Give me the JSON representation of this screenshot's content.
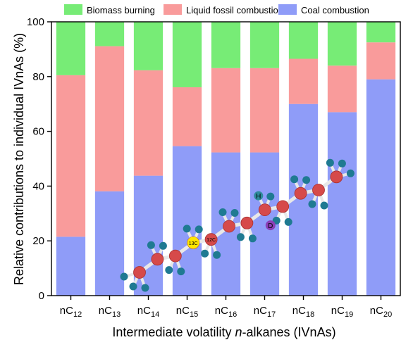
{
  "chart_data": {
    "type": "bar",
    "stacked": true,
    "ylabel": "Relative contributions to individual IVnAs (%)",
    "xlabel": {
      "prefix": "Intermediate volatility ",
      "italic": "n",
      "suffix": "-alkanes (IVnAs)"
    },
    "ylim": [
      0,
      100
    ],
    "yticks": [
      0,
      20,
      40,
      60,
      80,
      100
    ],
    "categories": [
      {
        "base": "nC",
        "sub": "12"
      },
      {
        "base": "nC",
        "sub": "13"
      },
      {
        "base": "nC",
        "sub": "14"
      },
      {
        "base": "nC",
        "sub": "15"
      },
      {
        "base": "nC",
        "sub": "16"
      },
      {
        "base": "nC",
        "sub": "17"
      },
      {
        "base": "nC",
        "sub": "18"
      },
      {
        "base": "nC",
        "sub": "19"
      },
      {
        "base": "nC",
        "sub": "20"
      }
    ],
    "series": [
      {
        "name": "Coal combustion",
        "color": "#8f9cf8",
        "values": [
          21.5,
          38.1,
          43.8,
          54.6,
          52.3,
          52.3,
          70.0,
          67.0,
          79.0
        ]
      },
      {
        "name": "Liquid fossil combustion",
        "color": "#f99b9b",
        "values": [
          59.0,
          53.0,
          38.5,
          21.5,
          30.8,
          30.8,
          16.5,
          17.0,
          13.5
        ]
      },
      {
        "name": "Biomass burning",
        "color": "#77ec76",
        "values": [
          19.5,
          8.9,
          17.7,
          23.9,
          16.9,
          16.9,
          13.5,
          16.0,
          7.5
        ]
      }
    ],
    "legend_order": [
      "Biomass burning",
      "Liquid fossil combustion",
      "Coal combustion"
    ],
    "legend_position": "top"
  },
  "molecule": {
    "labels": [
      {
        "id": "h",
        "text": "H",
        "color": "#2f8b9c"
      },
      {
        "id": "d",
        "text": "D",
        "color": "#8a3fb6"
      },
      {
        "id": "c13",
        "text": "13C",
        "color": "#ffe600"
      },
      {
        "id": "c12",
        "text": "12C",
        "color": "#d64a4a"
      }
    ],
    "colors": {
      "carbon": "#d64a4a",
      "hydrogen": "#1f7a92",
      "bond": "#e8e8e8"
    }
  }
}
